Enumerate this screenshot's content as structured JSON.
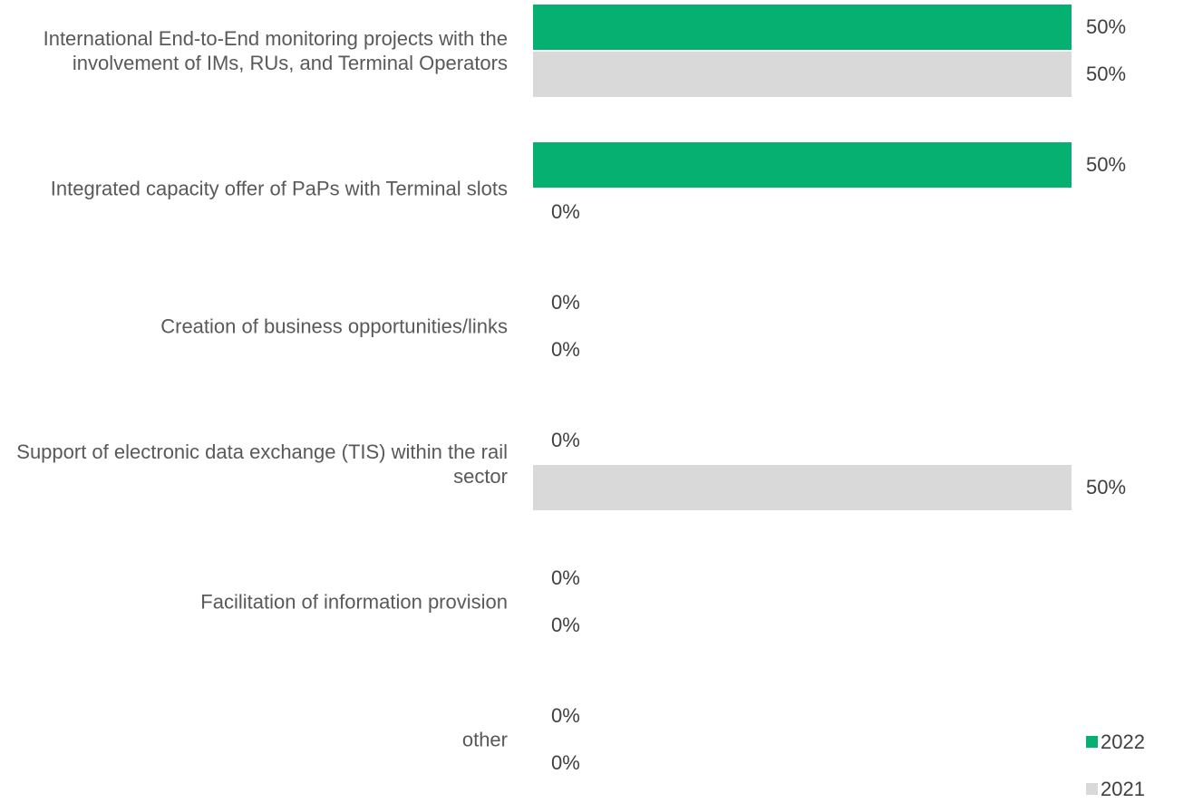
{
  "chart_data": {
    "type": "hbar",
    "categories": [
      "International End-to-End monitoring projects with the involvement of IMs, RUs, and Terminal Operators",
      "Integrated capacity offer of PaPs with Terminal slots",
      "Creation of business opportunities/links",
      "Support of electronic data exchange (TIS) within the rail sector",
      "Facilitation of information provision",
      "other"
    ],
    "series": [
      {
        "name": "2022",
        "color": "#06b070",
        "values": [
          50,
          50,
          0,
          0,
          0,
          0
        ],
        "value_labels": [
          "50%",
          "50%",
          "0%",
          "0%",
          "0%",
          "0%"
        ]
      },
      {
        "name": "2021",
        "color": "#d9d9d9",
        "values": [
          50,
          0,
          0,
          50,
          0,
          0
        ],
        "value_labels": [
          "50%",
          "0%",
          "0%",
          "50%",
          "0%",
          "0%"
        ]
      }
    ],
    "xlim": [
      0,
      50
    ],
    "legend": "bottom-right"
  }
}
